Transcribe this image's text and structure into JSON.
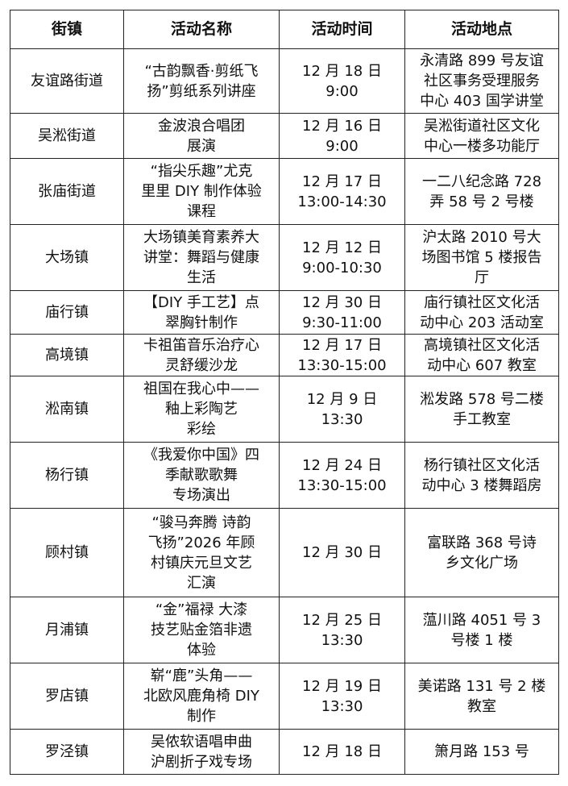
{
  "table": {
    "headers": [
      "街镇",
      "活动名称",
      "活动时间",
      "活动地点"
    ],
    "rows": [
      [
        "友谊路街道",
        "“古韵飘香·剪纸飞\n扬”剪纸系列讲座",
        "12 月 18 日\n9:00",
        "永清路 899 号友谊\n社区事务受理服务\n中心 403 国学讲堂"
      ],
      [
        "吴淞街道",
        "金波浪合唱团\n展演",
        "12 月 16 日\n9:00",
        "吴淞街道社区文化\n中心一楼多功能厅"
      ],
      [
        "张庙街道",
        "“指尖乐趣”尤克\n里里 DIY 制作体验\n课程",
        "12 月 17 日\n13:00-14:30",
        "一二八纪念路 728\n弄 58 号 2 号楼"
      ],
      [
        "大场镇",
        "大场镇美育素养大\n讲堂：舞蹈与健康\n生活",
        "12 月 12 日\n9:00-10:30",
        "沪太路 2010 号大\n场图书馆 5 楼报告\n厅"
      ],
      [
        "庙行镇",
        "【DIY 手工艺】点\n翠胸针制作",
        "12 月 30 日\n9:30-11:00",
        "庙行镇社区文化活\n动中心 203 活动室"
      ],
      [
        "高境镇",
        "卡祖笛音乐治疗心\n灵舒缓沙龙",
        "12 月 17 日\n13:30-15:00",
        "高境镇社区文化活\n动中心 607 教室"
      ],
      [
        "淞南镇",
        "祖国在我心中——\n釉上彩陶艺\n彩绘",
        "12 月 9 日\n13:30",
        "淞发路 578 号二楼\n手工教室"
      ],
      [
        "杨行镇",
        "《我爱你中国》四\n季献歌歌舞\n专场演出",
        "12 月 24 日\n13:30-15:00",
        "杨行镇社区文化活\n动中心 3 楼舞蹈房"
      ],
      [
        "顾村镇",
        "“骏马奔腾  诗韵\n飞扬”2026 年顾\n村镇庆元旦文艺\n汇演",
        "12 月 30 日",
        "富联路  368  号诗\n乡文化广场"
      ],
      [
        "月浦镇",
        "“金”福禄  大漆\n技艺贴金箔非遗\n体验",
        "12 月 25 日\n13:30",
        "蕰川路 4051 号 3\n号楼 1 楼"
      ],
      [
        "罗店镇",
        "崭“鹿”头角——\n北欧风鹿角椅 DIY\n制作",
        "12 月 19 日\n13:30",
        "美诺路 131 号 2 楼\n教室"
      ],
      [
        "罗泾镇",
        "吴侬软语唱申曲\n沪剧折子戏专场",
        "12 月 18 日",
        "箫月路 153 号"
      ]
    ]
  }
}
